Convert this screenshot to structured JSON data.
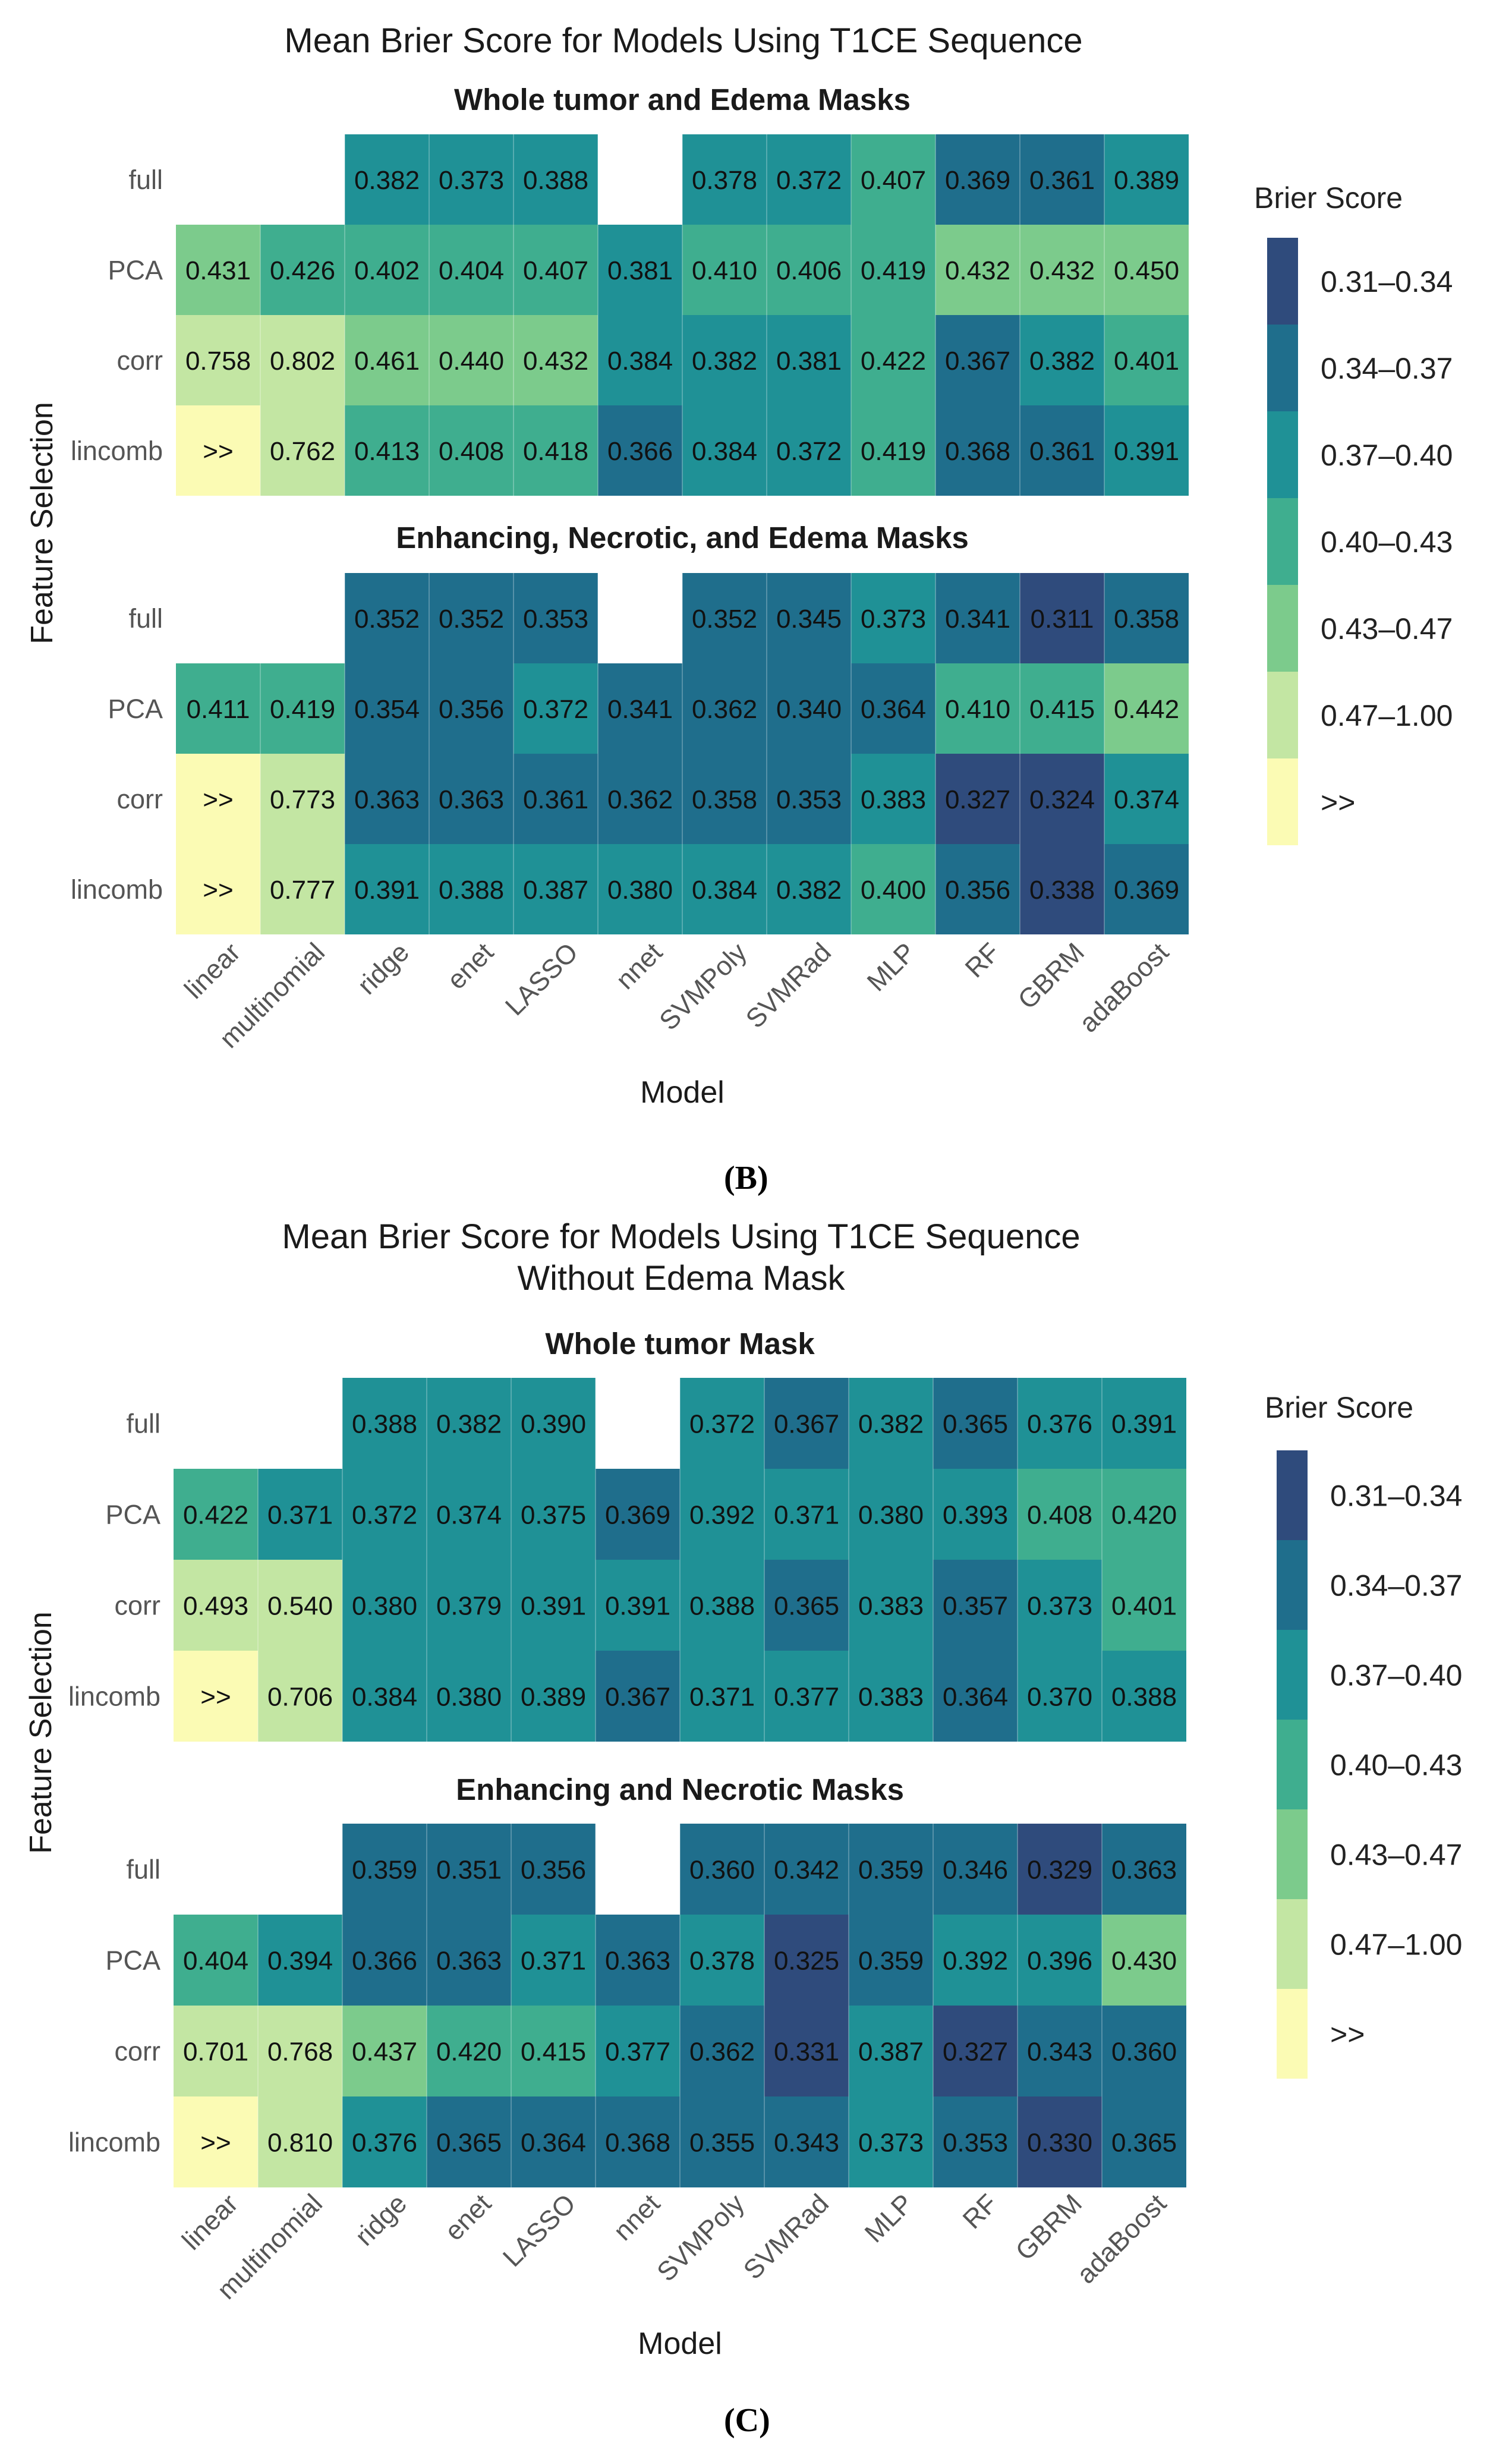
{
  "figure": {
    "panel_labels": [
      "(B)",
      "(C)"
    ]
  },
  "palette": {
    "0.31–0.34": "#2f4b7c",
    "0.34–0.37": "#1f6e8c",
    "0.37–0.40": "#1f9196",
    "0.40–0.43": "#3fae8f",
    "0.43–0.47": "#7ccb8c",
    "0.47–1.00": "#c3e6a3",
    ">>": "#fbfbb4"
  },
  "chart_data": [
    {
      "type": "heatmap",
      "title": "Mean Brier Score for Models Using T1CE Sequence",
      "xlabel": "Model",
      "ylabel": "Feature Selection",
      "legend_title": "Brier Score",
      "legend_bins": [
        "0.31–0.34",
        "0.34–0.37",
        "0.37–0.40",
        "0.40–0.43",
        "0.43–0.47",
        "0.47–1.00",
        ">>"
      ],
      "models": [
        "linear",
        "multinomial",
        "ridge",
        "enet",
        "LASSO",
        "nnet",
        "SVMPoly",
        "SVMRad",
        "MLP",
        "RF",
        "GBRM",
        "adaBoost"
      ],
      "rows": [
        "full",
        "PCA",
        "corr",
        "lincomb"
      ],
      "facets": [
        {
          "label": "Whole tumor and Edema Masks",
          "values": [
            [
              "",
              "",
              "0.382",
              "0.373",
              "0.388",
              "",
              "0.378",
              "0.372",
              "0.407",
              "0.369",
              "0.361",
              "0.389"
            ],
            [
              "0.431",
              "0.426",
              "0.402",
              "0.404",
              "0.407",
              "0.381",
              "0.410",
              "0.406",
              "0.419",
              "0.432",
              "0.432",
              "0.450"
            ],
            [
              "0.758",
              "0.802",
              "0.461",
              "0.440",
              "0.432",
              "0.384",
              "0.382",
              "0.381",
              "0.422",
              "0.367",
              "0.382",
              "0.401"
            ],
            [
              ">>",
              "0.762",
              "0.413",
              "0.408",
              "0.418",
              "0.366",
              "0.384",
              "0.372",
              "0.419",
              "0.368",
              "0.361",
              "0.391"
            ]
          ]
        },
        {
          "label": "Enhancing, Necrotic, and Edema Masks",
          "values": [
            [
              "",
              "",
              "0.352",
              "0.352",
              "0.353",
              "",
              "0.352",
              "0.345",
              "0.373",
              "0.341",
              "0.311",
              "0.358"
            ],
            [
              "0.411",
              "0.419",
              "0.354",
              "0.356",
              "0.372",
              "0.341",
              "0.362",
              "0.340",
              "0.364",
              "0.410",
              "0.415",
              "0.442"
            ],
            [
              ">>",
              "0.773",
              "0.363",
              "0.363",
              "0.361",
              "0.362",
              "0.358",
              "0.353",
              "0.383",
              "0.327",
              "0.324",
              "0.374"
            ],
            [
              ">>",
              "0.777",
              "0.391",
              "0.388",
              "0.387",
              "0.380",
              "0.384",
              "0.382",
              "0.400",
              "0.356",
              "0.338",
              "0.369"
            ]
          ]
        }
      ]
    },
    {
      "type": "heatmap",
      "title": "Mean Brier Score for Models Using T1CE Sequence",
      "subtitle": "Without Edema Mask",
      "xlabel": "Model",
      "ylabel": "Feature Selection",
      "legend_title": "Brier Score",
      "legend_bins": [
        "0.31–0.34",
        "0.34–0.37",
        "0.37–0.40",
        "0.40–0.43",
        "0.43–0.47",
        "0.47–1.00",
        ">>"
      ],
      "models": [
        "linear",
        "multinomial",
        "ridge",
        "enet",
        "LASSO",
        "nnet",
        "SVMPoly",
        "SVMRad",
        "MLP",
        "RF",
        "GBRM",
        "adaBoost"
      ],
      "rows": [
        "full",
        "PCA",
        "corr",
        "lincomb"
      ],
      "facets": [
        {
          "label": "Whole tumor Mask",
          "values": [
            [
              "",
              "",
              "0.388",
              "0.382",
              "0.390",
              "",
              "0.372",
              "0.367",
              "0.382",
              "0.365",
              "0.376",
              "0.391"
            ],
            [
              "0.422",
              "0.371",
              "0.372",
              "0.374",
              "0.375",
              "0.369",
              "0.392",
              "0.371",
              "0.380",
              "0.393",
              "0.408",
              "0.420"
            ],
            [
              "0.493",
              "0.540",
              "0.380",
              "0.379",
              "0.391",
              "0.391",
              "0.388",
              "0.365",
              "0.383",
              "0.357",
              "0.373",
              "0.401"
            ],
            [
              ">>",
              "0.706",
              "0.384",
              "0.380",
              "0.389",
              "0.367",
              "0.371",
              "0.377",
              "0.383",
              "0.364",
              "0.370",
              "0.388"
            ]
          ]
        },
        {
          "label": "Enhancing and Necrotic Masks",
          "values": [
            [
              "",
              "",
              "0.359",
              "0.351",
              "0.356",
              "",
              "0.360",
              "0.342",
              "0.359",
              "0.346",
              "0.329",
              "0.363"
            ],
            [
              "0.404",
              "0.394",
              "0.366",
              "0.363",
              "0.371",
              "0.363",
              "0.378",
              "0.325",
              "0.359",
              "0.392",
              "0.396",
              "0.430"
            ],
            [
              "0.701",
              "0.768",
              "0.437",
              "0.420",
              "0.415",
              "0.377",
              "0.362",
              "0.331",
              "0.387",
              "0.327",
              "0.343",
              "0.360"
            ],
            [
              ">>",
              "0.810",
              "0.376",
              "0.365",
              "0.364",
              "0.368",
              "0.355",
              "0.343",
              "0.373",
              "0.353",
              "0.330",
              "0.365"
            ]
          ]
        }
      ]
    }
  ]
}
